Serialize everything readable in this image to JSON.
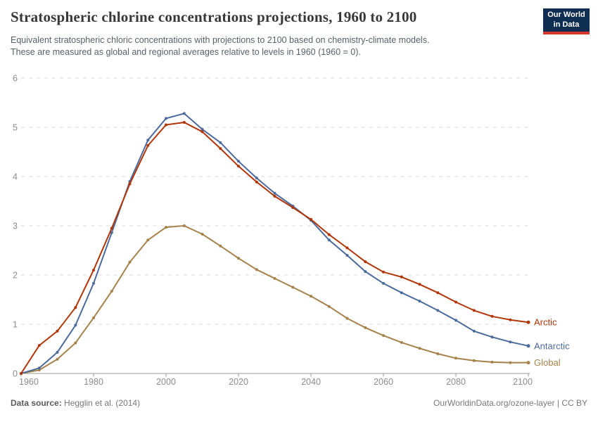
{
  "header": {
    "title": "Stratospheric chlorine concentrations projections, 1960 to 2100",
    "subtitle_line1": "Equivalent stratospheric chloric concentrations with projections to 2100 based on chemistry-climate models.",
    "subtitle_line2": "These are measured as global and regional averages relative to levels in 1960 (1960 = 0).",
    "logo": {
      "line1": "Our World",
      "line2": "in Data",
      "bg_color": "#102d52",
      "bar_color": "#d8352a"
    }
  },
  "footer": {
    "source_label": "Data source:",
    "source_value": " Hegglin et al. (2014)",
    "link": "OurWorldinData.org/ozone-layer",
    "separator": " | ",
    "license": "CC BY"
  },
  "chart_data": {
    "type": "line",
    "title": "Stratospheric chlorine concentrations projections, 1960 to 2100",
    "xlabel": "",
    "ylabel": "",
    "xlim": [
      1960,
      2102
    ],
    "ylim": [
      0,
      6
    ],
    "xticks": [
      1960,
      1980,
      2000,
      2020,
      2040,
      2060,
      2080,
      2100
    ],
    "yticks": [
      0,
      1,
      2,
      3,
      4,
      5,
      6
    ],
    "grid": "horizontal-dashed",
    "legend_position": "line-end-labels-right",
    "x": [
      1960,
      1965,
      1970,
      1975,
      1980,
      1985,
      1990,
      1995,
      2000,
      2005,
      2010,
      2015,
      2020,
      2025,
      2030,
      2035,
      2040,
      2045,
      2050,
      2055,
      2060,
      2065,
      2070,
      2075,
      2080,
      2085,
      2090,
      2095,
      2100
    ],
    "series": [
      {
        "name": "Arctic",
        "color": "#B13507",
        "values": [
          0,
          0.57,
          0.86,
          1.34,
          2.1,
          2.95,
          3.85,
          4.63,
          5.05,
          5.1,
          4.91,
          4.57,
          4.21,
          3.89,
          3.6,
          3.37,
          3.13,
          2.82,
          2.55,
          2.27,
          2.06,
          1.96,
          1.81,
          1.64,
          1.45,
          1.28,
          1.16,
          1.09,
          1.04
        ]
      },
      {
        "name": "Antarctic",
        "color": "#4C6A9C",
        "values": [
          0,
          0.11,
          0.43,
          0.98,
          1.83,
          2.86,
          3.9,
          4.74,
          5.18,
          5.28,
          4.96,
          4.69,
          4.31,
          3.97,
          3.66,
          3.4,
          3.11,
          2.71,
          2.4,
          2.07,
          1.83,
          1.64,
          1.47,
          1.28,
          1.08,
          0.86,
          0.74,
          0.64,
          0.56
        ]
      },
      {
        "name": "Global",
        "color": "#A5824B",
        "values": [
          0,
          0.07,
          0.29,
          0.62,
          1.13,
          1.67,
          2.26,
          2.71,
          2.97,
          3.0,
          2.83,
          2.59,
          2.34,
          2.11,
          1.93,
          1.75,
          1.57,
          1.36,
          1.12,
          0.93,
          0.77,
          0.63,
          0.51,
          0.4,
          0.31,
          0.26,
          0.23,
          0.22,
          0.22
        ]
      }
    ]
  }
}
